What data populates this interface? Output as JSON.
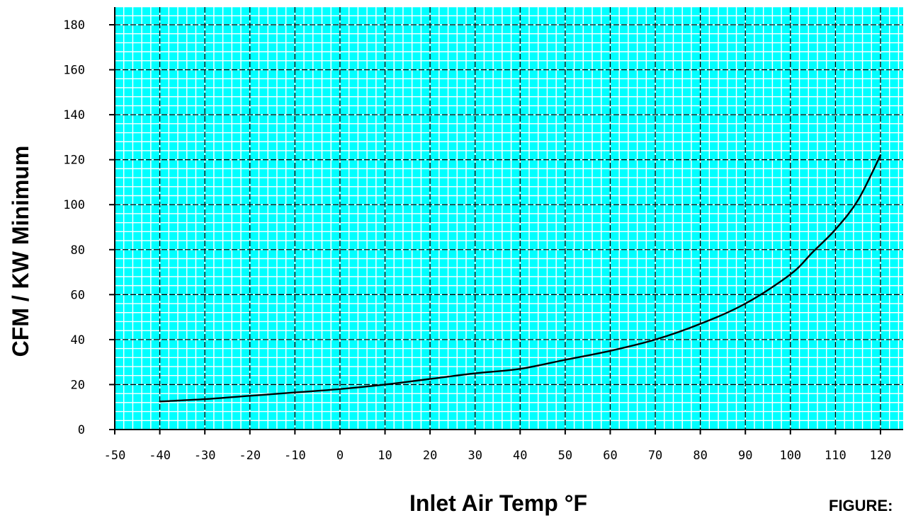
{
  "chart_data": {
    "type": "line",
    "title": "",
    "xlabel": "Inlet Air Temp °F",
    "ylabel": "CFM / KW Minimum",
    "xlim": [
      -50,
      125
    ],
    "ylim": [
      0,
      180
    ],
    "x_ticks": [
      "-50",
      "-40",
      "-30",
      "-20",
      "-10",
      "0",
      "10",
      "20",
      "30",
      "40",
      "50",
      "60",
      "70",
      "80",
      "90",
      "100",
      "110",
      "120"
    ],
    "y_ticks": [
      "0",
      "20",
      "40",
      "60",
      "80",
      "100",
      "120",
      "140",
      "160",
      "180"
    ],
    "grid": true,
    "legend": "none",
    "series": [
      {
        "x": [
          -40,
          -30,
          -20,
          -10,
          0,
          10,
          20,
          30,
          40,
          50,
          60,
          70,
          80,
          90,
          100,
          105,
          110,
          115,
          120
        ],
        "y": [
          12.5,
          13.5,
          15,
          16.5,
          18,
          20,
          22.5,
          25,
          27,
          31,
          35,
          40,
          47,
          56,
          69,
          79,
          89,
          102,
          122
        ]
      }
    ],
    "colors": {
      "plot_background": "#00ffff",
      "minor_grid": "#ffffff",
      "major_grid": "#000000",
      "line": "#000000"
    }
  },
  "figure_caption": "FIGURE:"
}
